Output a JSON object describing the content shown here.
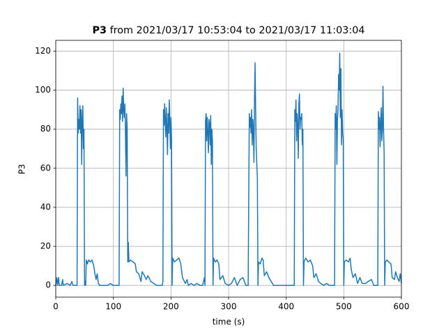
{
  "chart_data": {
    "type": "line",
    "title_name": "P3",
    "title": "from 2021/03/17 10:53:04 to 2021/03/17 11:03:04",
    "xlabel": "time (s)",
    "ylabel": "P3",
    "color": "#1f77b4",
    "grid": true,
    "xlim": [
      0,
      600
    ],
    "xticks": [
      0,
      100,
      200,
      300,
      400,
      500,
      600
    ],
    "ylim": [
      -6,
      125.5
    ],
    "yticks": [
      0,
      20,
      40,
      60,
      80,
      100,
      120
    ],
    "x": [
      0,
      2,
      3,
      5,
      6,
      10,
      12,
      13,
      20,
      25,
      28,
      30,
      35,
      37,
      38,
      39,
      40,
      41,
      42,
      43,
      44,
      45,
      46,
      47,
      48,
      49,
      50,
      51,
      52,
      53,
      55,
      57,
      60,
      63,
      66,
      68,
      70,
      72,
      74,
      76,
      80,
      85,
      90,
      95,
      100,
      108,
      110,
      111,
      112,
      113,
      114,
      115,
      116,
      117,
      118,
      119,
      120,
      121,
      122,
      123,
      124,
      125,
      126,
      127,
      130,
      134,
      138,
      140,
      144,
      148,
      150,
      154,
      157,
      160,
      165,
      170,
      175,
      180,
      185,
      186,
      187,
      188,
      189,
      190,
      191,
      192,
      193,
      194,
      195,
      196,
      197,
      198,
      199,
      200,
      201,
      202,
      203,
      206,
      210,
      214,
      217,
      220,
      225,
      228,
      230,
      235,
      240,
      245,
      250,
      255,
      258,
      259,
      260,
      261,
      262,
      263,
      264,
      265,
      266,
      267,
      268,
      269,
      270,
      271,
      272,
      273,
      274,
      277,
      280,
      283,
      285,
      290,
      294,
      300,
      305,
      310,
      315,
      320,
      325,
      330,
      334,
      336,
      337,
      338,
      339,
      340,
      341,
      342,
      343,
      344,
      345,
      346,
      347,
      348,
      349,
      350,
      351,
      352,
      355,
      358,
      360,
      362,
      366,
      370,
      374,
      378,
      385,
      390,
      395,
      400,
      405,
      410,
      414,
      415,
      416,
      417,
      418,
      419,
      420,
      421,
      422,
      423,
      424,
      425,
      426,
      427,
      428,
      429,
      430,
      431,
      434,
      438,
      442,
      446,
      448,
      452,
      456,
      460,
      465,
      470,
      475,
      480,
      484,
      485,
      486,
      487,
      488,
      489,
      490,
      491,
      492,
      493,
      494,
      495,
      496,
      497,
      498,
      499,
      500,
      501,
      504,
      508,
      511,
      513,
      516,
      520,
      524,
      528,
      532,
      538,
      542,
      548,
      552,
      556,
      559,
      560,
      561,
      562,
      563,
      564,
      565,
      566,
      567,
      568,
      569,
      570,
      571,
      572,
      575,
      578,
      582,
      584,
      588,
      590,
      593,
      596,
      598,
      600
    ],
    "values": [
      0,
      4,
      0,
      4,
      0,
      0,
      3,
      0,
      1,
      0,
      2,
      0,
      0,
      0,
      96,
      78,
      85,
      80,
      92,
      78,
      90,
      62,
      85,
      92,
      70,
      80,
      0,
      2,
      0,
      13,
      11,
      13,
      12,
      13,
      10,
      6,
      3,
      6,
      1,
      0,
      0,
      0,
      0,
      1,
      0,
      0,
      0,
      90,
      85,
      93,
      88,
      97,
      84,
      101,
      90,
      86,
      93,
      78,
      56,
      88,
      80,
      12,
      22,
      12,
      13,
      12,
      11,
      7,
      6,
      2,
      7,
      5,
      3,
      5,
      2,
      1,
      0,
      0,
      0,
      2,
      90,
      82,
      93,
      84,
      76,
      91,
      80,
      67,
      88,
      78,
      95,
      84,
      70,
      86,
      75,
      0,
      14,
      12,
      13,
      14,
      11,
      4,
      1,
      3,
      0,
      1,
      0,
      1,
      0,
      0,
      4,
      0,
      84,
      88,
      74,
      86,
      78,
      68,
      85,
      83,
      72,
      87,
      62,
      80,
      74,
      0,
      14,
      12,
      13,
      11,
      3,
      5,
      1,
      0,
      1,
      4,
      0,
      3,
      4,
      0,
      0,
      88,
      81,
      86,
      78,
      90,
      72,
      85,
      80,
      63,
      95,
      114,
      90,
      70,
      62,
      55,
      0,
      12,
      11,
      14,
      13,
      5,
      7,
      4,
      2,
      0,
      0,
      0,
      0,
      0,
      0,
      0,
      0,
      90,
      84,
      95,
      74,
      88,
      82,
      65,
      93,
      98,
      80,
      86,
      85,
      88,
      72,
      80,
      0,
      12,
      14,
      12,
      13,
      10,
      4,
      6,
      2,
      1,
      0,
      1,
      0,
      0,
      0,
      88,
      80,
      92,
      62,
      85,
      90,
      108,
      100,
      119,
      86,
      111,
      72,
      90,
      78,
      75,
      0,
      12,
      13,
      12,
      14,
      8,
      4,
      6,
      1,
      4,
      1,
      1,
      2,
      3,
      0,
      0,
      0,
      89,
      80,
      86,
      71,
      83,
      91,
      74,
      80,
      102,
      80,
      68,
      0,
      12,
      13,
      12,
      11,
      4,
      3,
      7,
      4,
      2,
      6,
      1
    ]
  }
}
